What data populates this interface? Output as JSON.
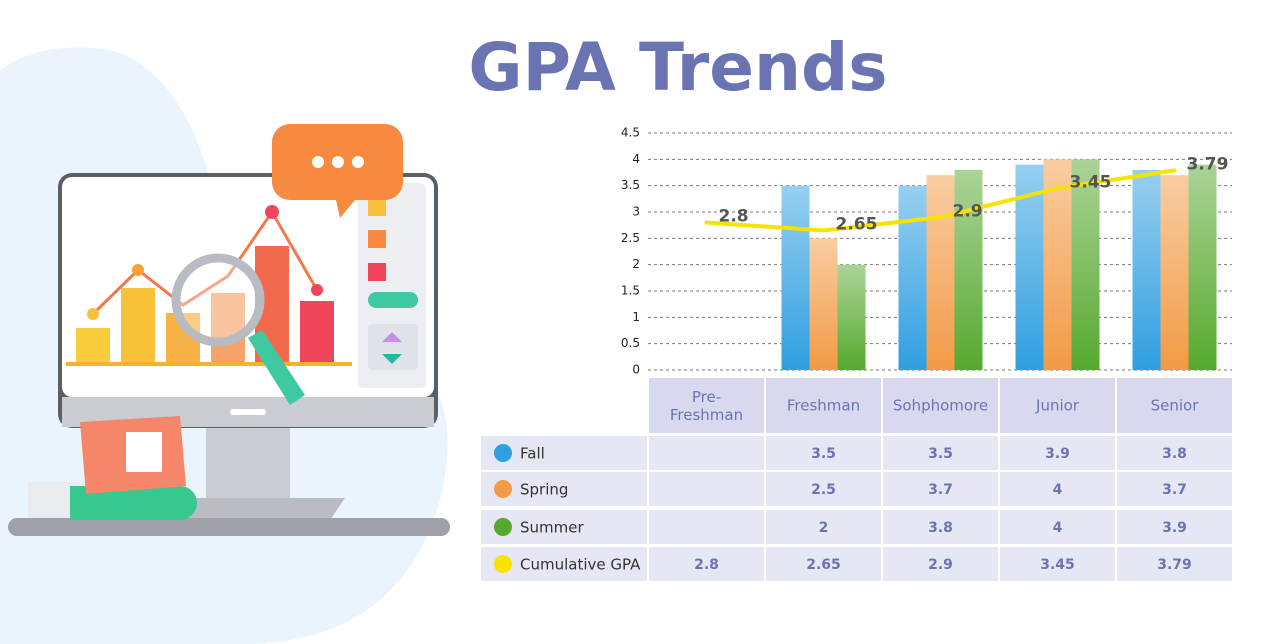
{
  "chart_data": {
    "type": "bar",
    "title": "GPA Trends",
    "categories": [
      "Pre-\nFreshman",
      "Freshman",
      "Sohphomore",
      "Junior",
      "Senior"
    ],
    "ylim": [
      0,
      4.5
    ],
    "yticks": [
      0,
      0.5,
      1,
      1.5,
      2,
      2.5,
      3,
      3.5,
      4,
      4.5
    ],
    "grid": true,
    "series": [
      {
        "name": "Fall",
        "color": "#2f9fe0",
        "values": [
          null,
          3.5,
          3.5,
          3.9,
          3.8
        ]
      },
      {
        "name": "Spring",
        "color": "#f29a45",
        "values": [
          null,
          2.5,
          3.7,
          4,
          3.7
        ]
      },
      {
        "name": "Summer",
        "color": "#56a92f",
        "values": [
          null,
          2,
          3.8,
          4,
          3.9
        ]
      },
      {
        "name": "Cumulative GPA",
        "color": "#f7e200",
        "type": "line",
        "values": [
          2.8,
          2.65,
          2.9,
          3.45,
          3.79
        ]
      }
    ]
  }
}
